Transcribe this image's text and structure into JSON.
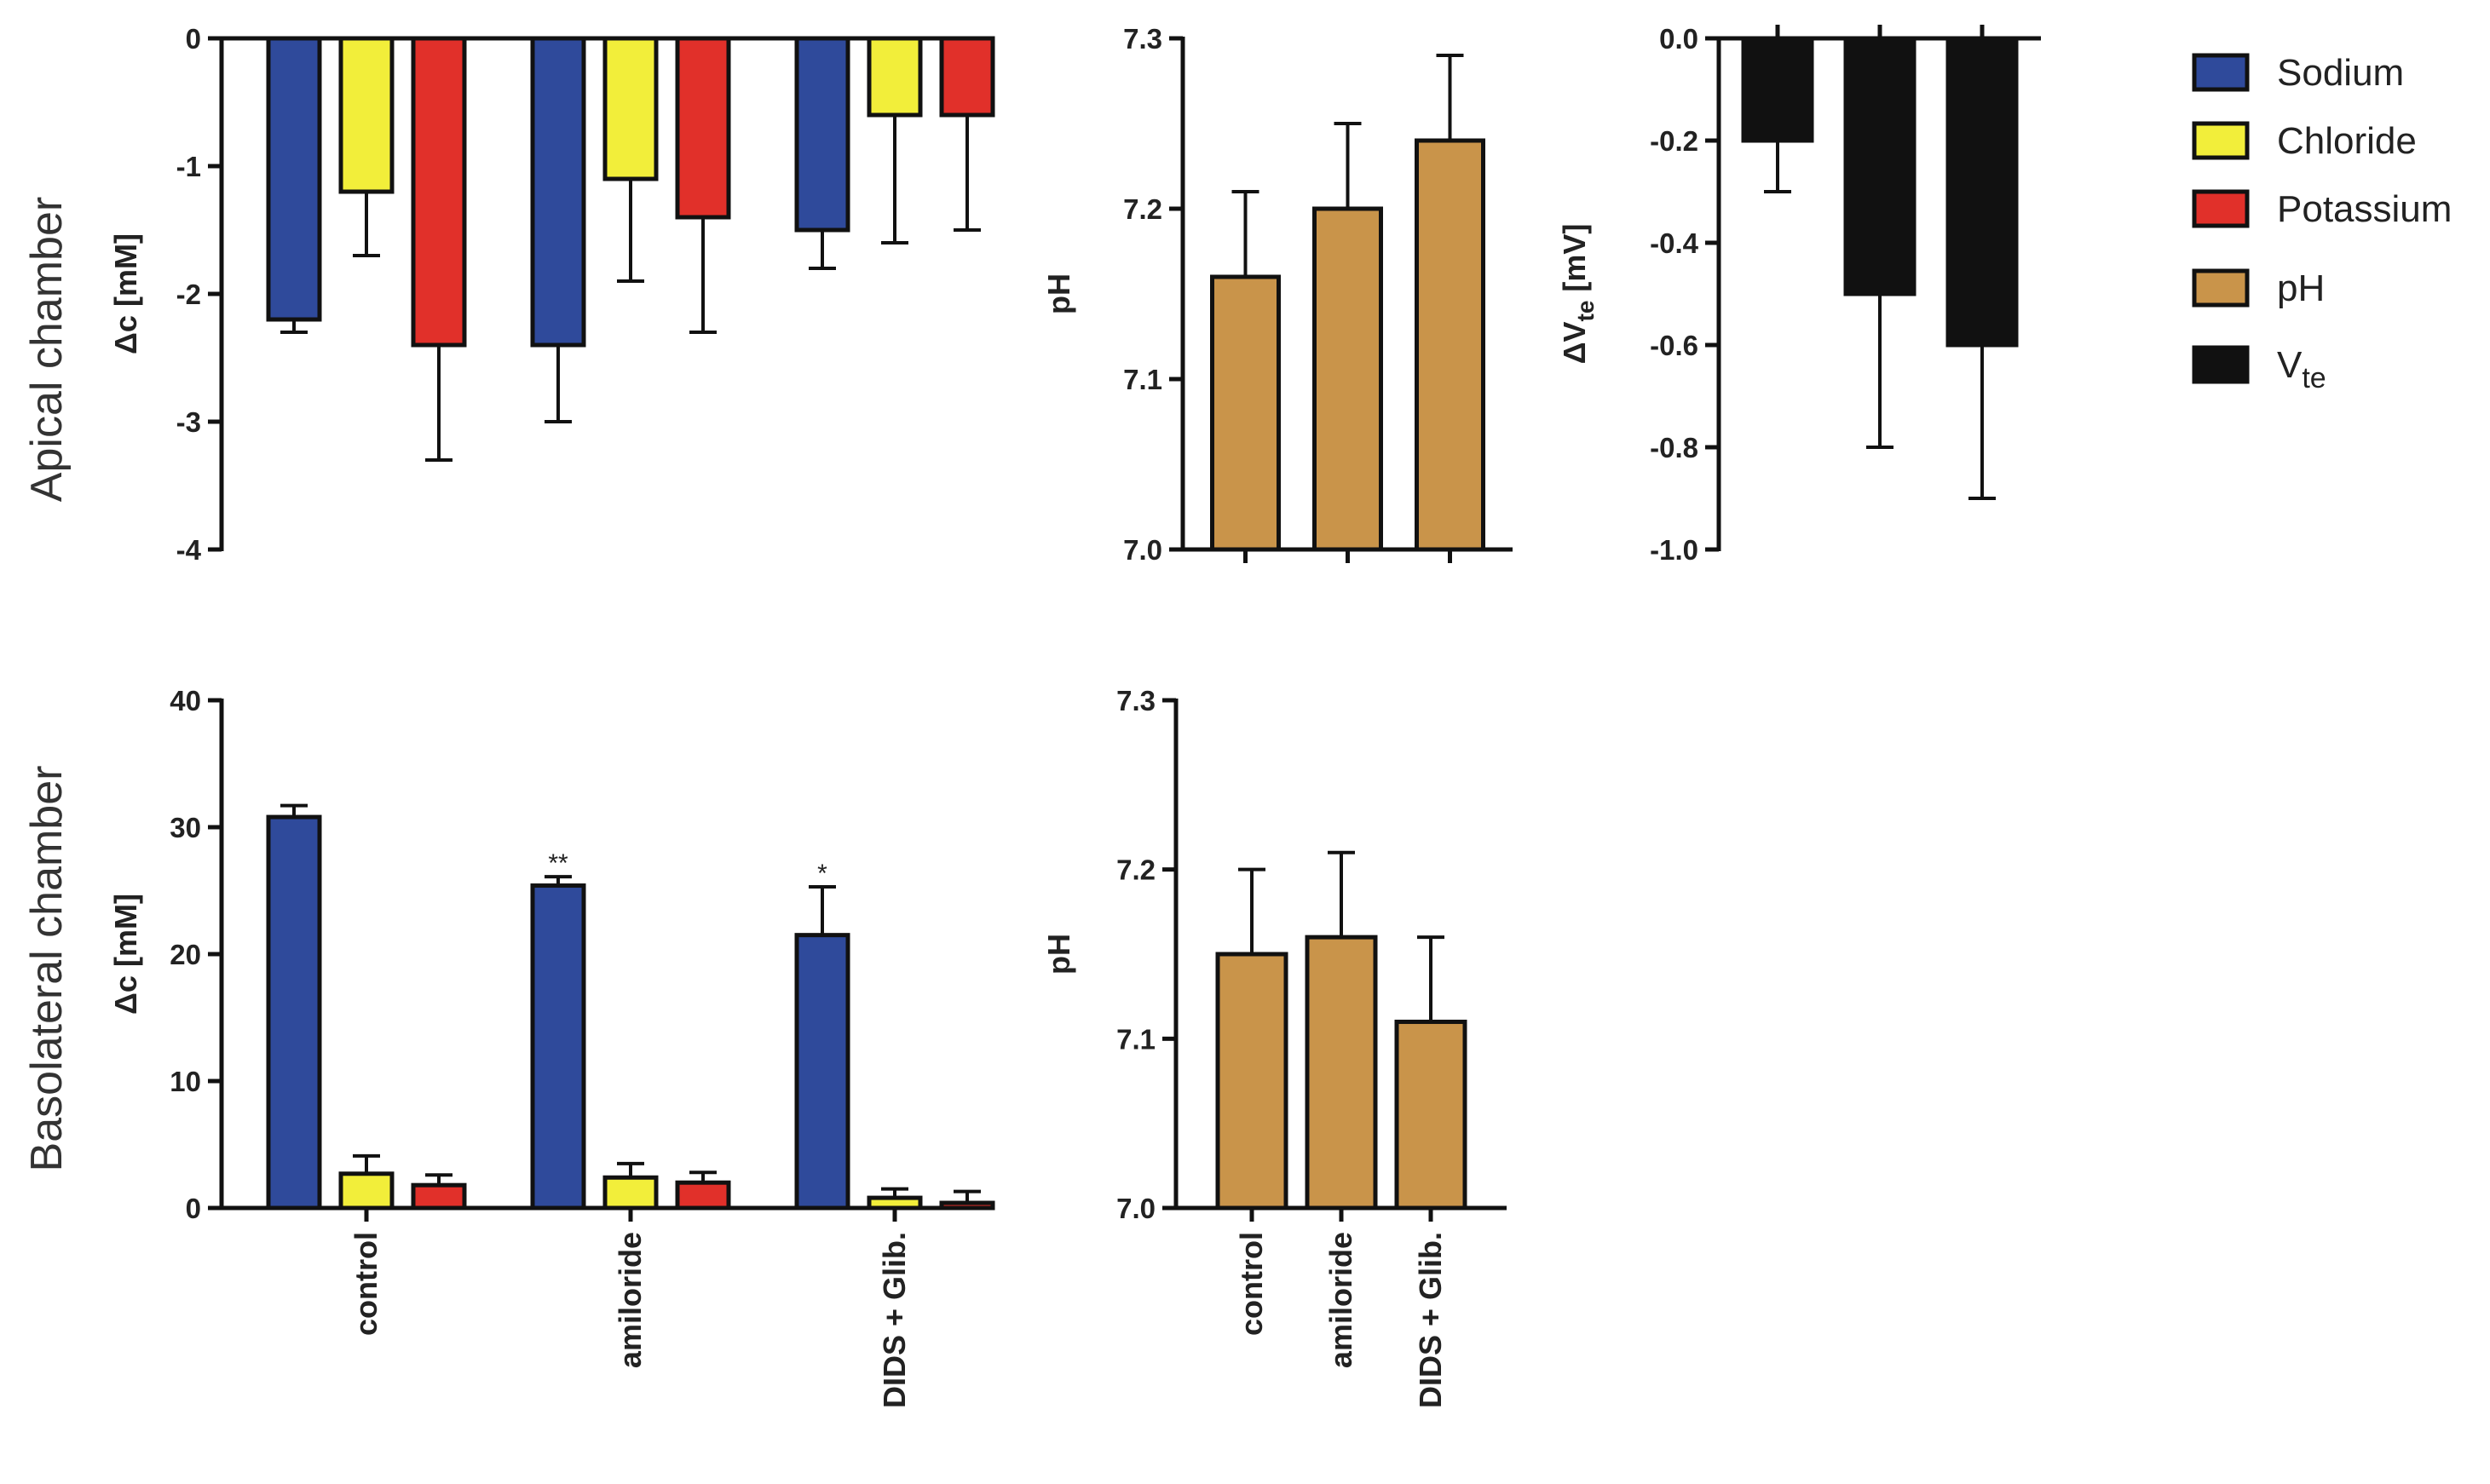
{
  "row_labels": {
    "apical": "Apical chamber",
    "basolateral": "Basolateral chamber"
  },
  "categories": [
    "control",
    "amiloride",
    "DIDS + Glib."
  ],
  "colors": {
    "Sodium": "#2f4a9b",
    "Chloride": "#f2ee3a",
    "Potassium": "#e1302a",
    "pH": "#c9944a",
    "Vte": "#111111"
  },
  "legend": [
    {
      "key": "Sodium",
      "label": "Sodium"
    },
    {
      "key": "Chloride",
      "label": "Chloride"
    },
    {
      "key": "Potassium",
      "label": "Potassium"
    },
    {
      "key": "pH",
      "label": "pH"
    },
    {
      "key": "Vte",
      "label": "V",
      "sub": "te"
    }
  ],
  "chart_data": [
    {
      "id": "apical-ions",
      "type": "bar",
      "ylabel": "Δc [mM]",
      "ylim": [
        -4,
        0
      ],
      "yticks": [
        0,
        -1,
        -2,
        -3,
        -4
      ],
      "ytick_labels": [
        "0",
        "-1",
        "-2",
        "-3",
        "-4"
      ],
      "categories": [
        "control",
        "amiloride",
        "DIDS + Glib."
      ],
      "series": [
        {
          "name": "Sodium",
          "values": [
            -2.2,
            -2.4,
            -1.5
          ],
          "errors": [
            0.1,
            0.6,
            0.3
          ]
        },
        {
          "name": "Chloride",
          "values": [
            -1.2,
            -1.1,
            -0.6
          ],
          "errors": [
            0.5,
            0.8,
            1.0
          ]
        },
        {
          "name": "Potassium",
          "values": [
            -2.4,
            -1.4,
            -0.6
          ],
          "errors": [
            0.9,
            0.9,
            0.9
          ]
        }
      ]
    },
    {
      "id": "apical-ph",
      "type": "bar",
      "ylabel": "pH",
      "ylim": [
        7.0,
        7.3
      ],
      "yticks": [
        7.0,
        7.1,
        7.2,
        7.3
      ],
      "ytick_labels": [
        "7.0",
        "7.1",
        "7.2",
        "7.3"
      ],
      "categories": [
        "control",
        "amiloride",
        "DIDS + Glib."
      ],
      "series": [
        {
          "name": "pH",
          "values": [
            7.16,
            7.2,
            7.24
          ],
          "errors": [
            0.05,
            0.05,
            0.05
          ]
        }
      ]
    },
    {
      "id": "apical-vte",
      "type": "bar",
      "ylabel": "ΔV",
      "ylabel_sub": "te",
      "ylabel_unit": " [mV]",
      "ylim": [
        -1.0,
        0.0
      ],
      "yticks": [
        0.0,
        -0.2,
        -0.4,
        -0.6,
        -0.8,
        -1.0
      ],
      "ytick_labels": [
        "0.0",
        "-0.2",
        "-0.4",
        "-0.6",
        "-0.8",
        "-1.0"
      ],
      "categories": [
        "control",
        "amiloride",
        "DIDS + Glib."
      ],
      "series": [
        {
          "name": "Vte",
          "values": [
            -0.2,
            -0.5,
            -0.6
          ],
          "errors": [
            0.1,
            0.3,
            0.3
          ]
        }
      ]
    },
    {
      "id": "basolateral-ions",
      "type": "bar",
      "ylabel": "Δc [mM]",
      "ylim": [
        0,
        40
      ],
      "yticks": [
        0,
        10,
        20,
        30,
        40
      ],
      "ytick_labels": [
        "0",
        "10",
        "20",
        "30",
        "40"
      ],
      "categories": [
        "control",
        "amiloride",
        "DIDS + Glib."
      ],
      "series": [
        {
          "name": "Sodium",
          "values": [
            30.8,
            25.4,
            21.5
          ],
          "errors": [
            0.9,
            0.7,
            3.8
          ],
          "significance": [
            "",
            "**",
            "*"
          ]
        },
        {
          "name": "Chloride",
          "values": [
            2.7,
            2.4,
            0.8
          ],
          "errors": [
            1.4,
            1.1,
            0.7
          ]
        },
        {
          "name": "Potassium",
          "values": [
            1.8,
            2.0,
            0.4
          ],
          "errors": [
            0.8,
            0.8,
            0.9
          ]
        }
      ]
    },
    {
      "id": "basolateral-ph",
      "type": "bar",
      "ylabel": "pH",
      "ylim": [
        7.0,
        7.3
      ],
      "yticks": [
        7.0,
        7.1,
        7.2,
        7.3
      ],
      "ytick_labels": [
        "7.0",
        "7.1",
        "7.2",
        "7.3"
      ],
      "categories": [
        "control",
        "amiloride",
        "DIDS + Glib."
      ],
      "series": [
        {
          "name": "pH",
          "values": [
            7.15,
            7.16,
            7.11
          ],
          "errors": [
            0.05,
            0.05,
            0.05
          ]
        }
      ]
    }
  ]
}
